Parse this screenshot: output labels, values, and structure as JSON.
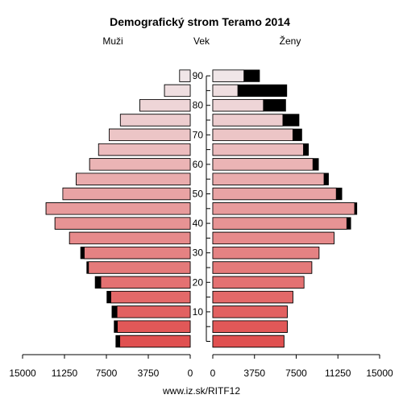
{
  "chart_data": {
    "type": "bar",
    "orientation": "horizontal",
    "kind": "population-pyramid",
    "title": "Demografický strom Teramo 2014",
    "left_label": "Muži",
    "center_label": "Vek",
    "right_label": "Ženy",
    "source": "www.iz.sk/RITF12",
    "age_groups": [
      "0",
      "5",
      "10",
      "15",
      "20",
      "25",
      "30",
      "35",
      "40",
      "45",
      "50",
      "55",
      "60",
      "65",
      "70",
      "75",
      "80",
      "85",
      "90"
    ],
    "y_ticks": [
      "10",
      "20",
      "30",
      "40",
      "50",
      "60",
      "70",
      "80",
      "90"
    ],
    "x_ticks": [
      "15000",
      "11250",
      "7500",
      "3750",
      "0",
      "0",
      "3750",
      "7500",
      "11250",
      "15000"
    ],
    "xlim": [
      0,
      15000
    ],
    "series": [
      {
        "name": "Muži",
        "side": "left",
        "totals": [
          6650,
          6800,
          7000,
          7450,
          8500,
          9250,
          9800,
          10800,
          12100,
          12900,
          11400,
          10200,
          9000,
          8200,
          7250,
          6250,
          4500,
          2300,
          950
        ],
        "foreign": [
          350,
          280,
          450,
          350,
          500,
          150,
          320,
          0,
          0,
          0,
          0,
          0,
          0,
          0,
          0,
          0,
          0,
          0,
          0
        ]
      },
      {
        "name": "Ženy",
        "side": "right",
        "totals": [
          6400,
          6700,
          6700,
          7200,
          8200,
          8900,
          9550,
          10900,
          12400,
          12950,
          11600,
          10400,
          9500,
          8600,
          8000,
          7750,
          6550,
          6650,
          4200
        ],
        "foreign": [
          0,
          0,
          0,
          0,
          0,
          0,
          0,
          0,
          350,
          200,
          500,
          400,
          500,
          450,
          800,
          1450,
          2000,
          4400,
          1400
        ]
      }
    ],
    "colors": {
      "foreign": "#000000",
      "young": "#e05050",
      "old": "#f0e6e8"
    }
  }
}
